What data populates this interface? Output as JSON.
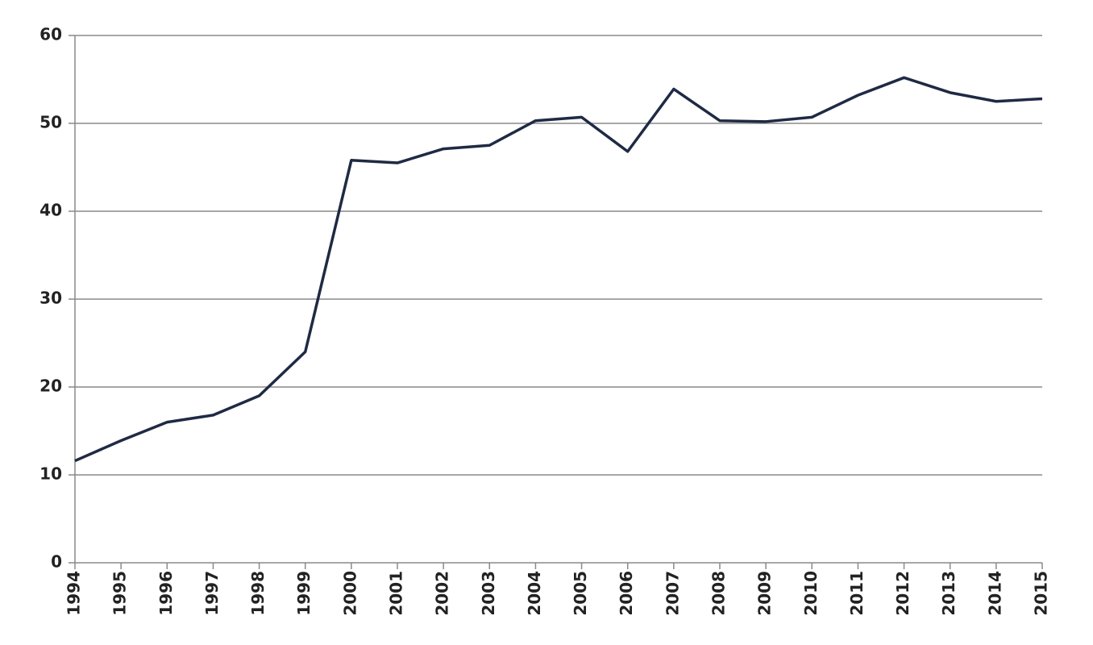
{
  "chart_data": {
    "type": "line",
    "categories": [
      "1994",
      "1995",
      "1996",
      "1997",
      "1998",
      "1999",
      "2000",
      "2001",
      "2002",
      "2003",
      "2004",
      "2005",
      "2006",
      "2007",
      "2008",
      "2009",
      "2010",
      "2011",
      "2012",
      "2013",
      "2014",
      "2015"
    ],
    "values": [
      11.6,
      13.9,
      16.0,
      16.8,
      19.0,
      24.0,
      45.8,
      45.5,
      47.1,
      47.5,
      50.3,
      50.7,
      46.8,
      53.9,
      50.3,
      50.2,
      50.7,
      53.2,
      55.2,
      53.5,
      52.5,
      52.8
    ],
    "color": "#1f2a44",
    "ylim": [
      0,
      60
    ],
    "yticks": [
      0,
      10,
      20,
      30,
      40,
      50,
      60
    ],
    "grid": true
  }
}
